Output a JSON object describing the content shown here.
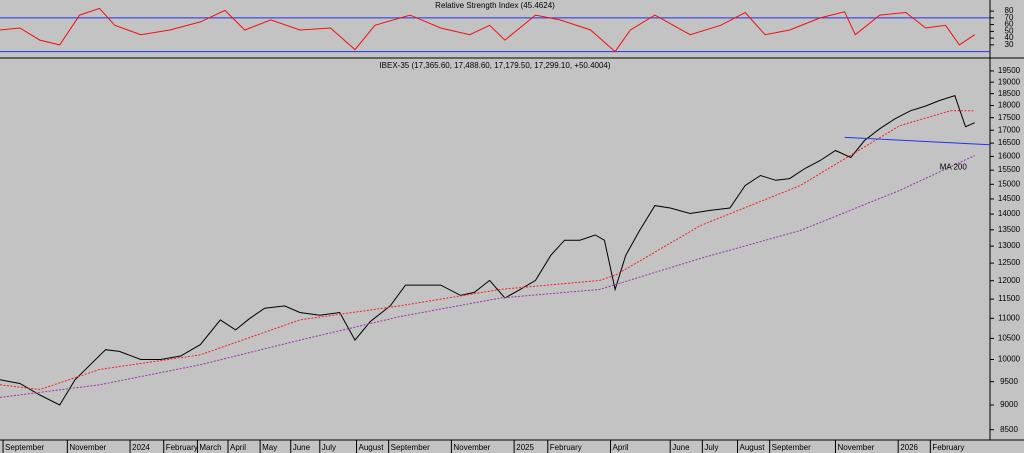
{
  "chart_data": [
    {
      "type": "line",
      "title": "Relative Strength Index (45.4624)",
      "xlim": [
        -2,
        645
      ],
      "ylim": [
        12,
        92
      ],
      "yticks": [
        80,
        70,
        60,
        50,
        40,
        30
      ],
      "levels": [
        70,
        20
      ],
      "level_color": "#2233ee",
      "series": [
        {
          "color": "#ee1111",
          "x": [
            -2,
            11,
            24,
            37,
            50,
            63,
            73,
            90,
            109,
            129,
            145,
            158,
            175,
            194,
            214,
            230,
            243,
            266,
            286,
            305,
            318,
            328,
            348,
            364,
            384,
            400,
            410,
            426,
            449,
            469,
            485,
            498,
            514,
            534,
            550,
            557,
            573,
            590,
            603,
            616,
            625,
            635
          ],
          "values": [
            52,
            55,
            37,
            30,
            74,
            84,
            59,
            45,
            52,
            64,
            81,
            52,
            67,
            52,
            55,
            23,
            59,
            74,
            55,
            45,
            59,
            37,
            74,
            67,
            52,
            20,
            52,
            74,
            45,
            59,
            78,
            45,
            52,
            70,
            79,
            45,
            74,
            78,
            55,
            59,
            30,
            45
          ]
        }
      ]
    },
    {
      "type": "line",
      "title": "IBEX-35 (17,365.60, 17,488.60, 17,179.50, 17,299.10, +50.4004)",
      "log_scale": true,
      "xlim": [
        -2,
        645
      ],
      "ylim": [
        8300,
        20000
      ],
      "yticks": [
        19500,
        19000,
        18500,
        18000,
        17500,
        17000,
        16500,
        16000,
        15500,
        15000,
        14500,
        14000,
        13500,
        13000,
        12500,
        12000,
        11500,
        11000,
        10500,
        10000,
        9500,
        9000,
        8500
      ],
      "xticks": [
        {
          "value": 0,
          "label": "September"
        },
        {
          "value": 42,
          "label": "November"
        },
        {
          "value": 83,
          "label": "2024"
        },
        {
          "value": 105,
          "label": "February"
        },
        {
          "value": 127,
          "label": "March"
        },
        {
          "value": 147,
          "label": "April"
        },
        {
          "value": 168,
          "label": "May"
        },
        {
          "value": 188,
          "label": "June"
        },
        {
          "value": 207,
          "label": "July"
        },
        {
          "value": 231,
          "label": "August"
        },
        {
          "value": 252,
          "label": "September"
        },
        {
          "value": 293,
          "label": "November"
        },
        {
          "value": 334,
          "label": "2025"
        },
        {
          "value": 356,
          "label": "February"
        },
        {
          "value": 397,
          "label": "April"
        },
        {
          "value": 436,
          "label": "June"
        },
        {
          "value": 457,
          "label": "July"
        },
        {
          "value": 480,
          "label": "August"
        },
        {
          "value": 501,
          "label": "September"
        },
        {
          "value": 544,
          "label": "November"
        },
        {
          "value": 585,
          "label": "2026"
        },
        {
          "value": 606,
          "label": "February"
        }
      ],
      "annotation": "MA 200",
      "annotation_color": "#9933aa",
      "series": [
        {
          "color": "#000000",
          "style": "solid",
          "x": [
            -2,
            11,
            24,
            37,
            47,
            57,
            67,
            76,
            90,
            103,
            116,
            129,
            142,
            152,
            161,
            171,
            184,
            194,
            207,
            220,
            230,
            240,
            253,
            263,
            273,
            286,
            299,
            308,
            318,
            328,
            338,
            348,
            358,
            367,
            377,
            387,
            393,
            400,
            407,
            416,
            426,
            436,
            449,
            462,
            475,
            485,
            495,
            505,
            514,
            524,
            534,
            544,
            554,
            563,
            573,
            583,
            593,
            603,
            612,
            622,
            629,
            635
          ],
          "values": [
            9540,
            9460,
            9210,
            9000,
            9540,
            9880,
            10230,
            10190,
            10000,
            10000,
            10080,
            10350,
            10960,
            10710,
            10990,
            11260,
            11320,
            11150,
            11080,
            11150,
            10460,
            10920,
            11320,
            11880,
            11880,
            11880,
            11600,
            11680,
            12010,
            11530,
            11760,
            12010,
            12730,
            13180,
            13180,
            13340,
            13180,
            11760,
            12730,
            13480,
            14280,
            14200,
            14020,
            14120,
            14200,
            14960,
            15310,
            15140,
            15200,
            15560,
            15850,
            16220,
            15960,
            16600,
            17060,
            17460,
            17780,
            17980,
            18210,
            18420,
            17140,
            17300
          ]
        },
        {
          "color": "#ee2222",
          "style": "dotted",
          "x": [
            -2,
            24,
            63,
            129,
            194,
            259,
            325,
            390,
            400,
            456,
            521,
            586,
            619,
            635
          ],
          "values": [
            9430,
            9330,
            9770,
            10110,
            10960,
            11320,
            11760,
            12010,
            12150,
            13640,
            14960,
            17180,
            17780,
            17780
          ]
        },
        {
          "color": "#9933aa",
          "style": "dotted",
          "x": [
            -2,
            63,
            129,
            194,
            259,
            325,
            390,
            456,
            521,
            586,
            635
          ],
          "values": [
            9160,
            9430,
            9880,
            10460,
            11040,
            11530,
            11760,
            12640,
            13480,
            14790,
            16030
          ]
        },
        {
          "color": "#2233ee",
          "style": "solid",
          "x": [
            550,
            645
          ],
          "values": [
            16720,
            16440
          ]
        }
      ]
    }
  ]
}
